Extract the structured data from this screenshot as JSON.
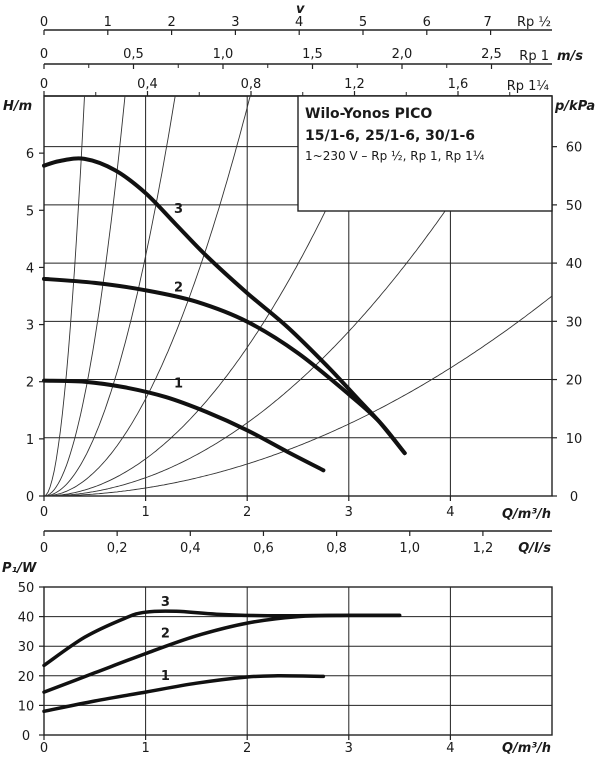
{
  "top_scales": [
    {
      "label": "v",
      "unit": "Rp ½",
      "ticks": [
        "0",
        "1",
        "2",
        "3",
        "4",
        "5",
        "6",
        "7"
      ]
    },
    {
      "label": "m/s",
      "unit": "Rp 1",
      "ticks": [
        "0",
        "0,5",
        "1,0",
        "1,5",
        "2,0",
        "2,5"
      ]
    },
    {
      "label": "",
      "unit": "Rp 1¼",
      "ticks": [
        "0",
        "0,4",
        "0,8",
        "1,2",
        "1,6"
      ]
    }
  ],
  "legend_box": {
    "title_line1": "Wilo-Yonos PICO",
    "title_line2": "15/1-6, 25/1-6, 30/1-6",
    "subtitle": "1~230 V – Rp ½, Rp 1, Rp 1¼"
  },
  "chart_data": [
    {
      "type": "line",
      "title": "",
      "xlabel": "Q/m³/h",
      "ylabel": "H/m",
      "y2label": "p/kPa",
      "xlim": [
        0,
        5
      ],
      "ylim": [
        0,
        7
      ],
      "y2lim": [
        0,
        68.7
      ],
      "x_ticks": [
        "0",
        "1",
        "2",
        "3",
        "4"
      ],
      "y_ticks": [
        "0",
        "1",
        "2",
        "3",
        "4",
        "5",
        "6"
      ],
      "y2_ticks": [
        "0",
        "10",
        "20",
        "30",
        "40",
        "50",
        "60"
      ],
      "secondary_x": {
        "label": "Q/l/s",
        "ticks": [
          "0",
          "0,2",
          "0,4",
          "0,6",
          "0,8",
          "1,0",
          "1,2"
        ]
      },
      "grid": true,
      "series": [
        {
          "name": "3",
          "x": [
            0,
            0.15,
            0.4,
            0.7,
            1.0,
            1.3,
            1.6,
            2.0,
            2.4,
            2.8,
            3.1,
            3.3,
            3.55
          ],
          "y": [
            5.78,
            5.86,
            5.9,
            5.7,
            5.3,
            4.75,
            4.2,
            3.55,
            2.95,
            2.25,
            1.68,
            1.3,
            0.75
          ]
        },
        {
          "name": "2",
          "x": [
            0,
            0.5,
            1.0,
            1.5,
            2.0,
            2.5,
            3.0,
            3.3,
            3.55
          ],
          "y": [
            3.8,
            3.73,
            3.6,
            3.4,
            3.05,
            2.5,
            1.78,
            1.3,
            0.75
          ]
        },
        {
          "name": "1",
          "x": [
            0,
            0.4,
            0.8,
            1.2,
            1.6,
            2.0,
            2.4,
            2.75
          ],
          "y": [
            2.02,
            2.0,
            1.9,
            1.73,
            1.47,
            1.15,
            0.77,
            0.45
          ]
        }
      ],
      "system_curves_k": [
        44,
        11,
        4.2,
        1.7,
        0.65,
        0.32,
        0.14
      ],
      "curve_labels": [
        "3",
        "2",
        "1"
      ]
    },
    {
      "type": "line",
      "title": "",
      "xlabel": "Q/m³/h",
      "ylabel": "P₁/W",
      "xlim": [
        0,
        5
      ],
      "ylim": [
        0,
        50
      ],
      "x_ticks": [
        "0",
        "1",
        "2",
        "3",
        "4"
      ],
      "y_ticks": [
        "0",
        "10",
        "20",
        "30",
        "40",
        "50"
      ],
      "grid": true,
      "series": [
        {
          "name": "3",
          "x": [
            0,
            0.4,
            0.8,
            1.0,
            1.3,
            1.7,
            2.2,
            2.8,
            3.5
          ],
          "y": [
            23.5,
            33,
            39.5,
            41.5,
            41.8,
            40.8,
            40.3,
            40.4,
            40.4
          ]
        },
        {
          "name": "2",
          "x": [
            0,
            0.5,
            1.0,
            1.5,
            2.0,
            2.5,
            3.0,
            3.5
          ],
          "y": [
            14.5,
            21,
            27.5,
            33.5,
            37.8,
            40,
            40.4,
            40.4
          ]
        },
        {
          "name": "1",
          "x": [
            0,
            0.5,
            1.0,
            1.5,
            2.0,
            2.3,
            2.75
          ],
          "y": [
            8,
            11.5,
            14.5,
            17.5,
            19.6,
            20,
            19.8
          ]
        }
      ],
      "curve_labels": [
        "3",
        "2",
        "1"
      ]
    }
  ]
}
